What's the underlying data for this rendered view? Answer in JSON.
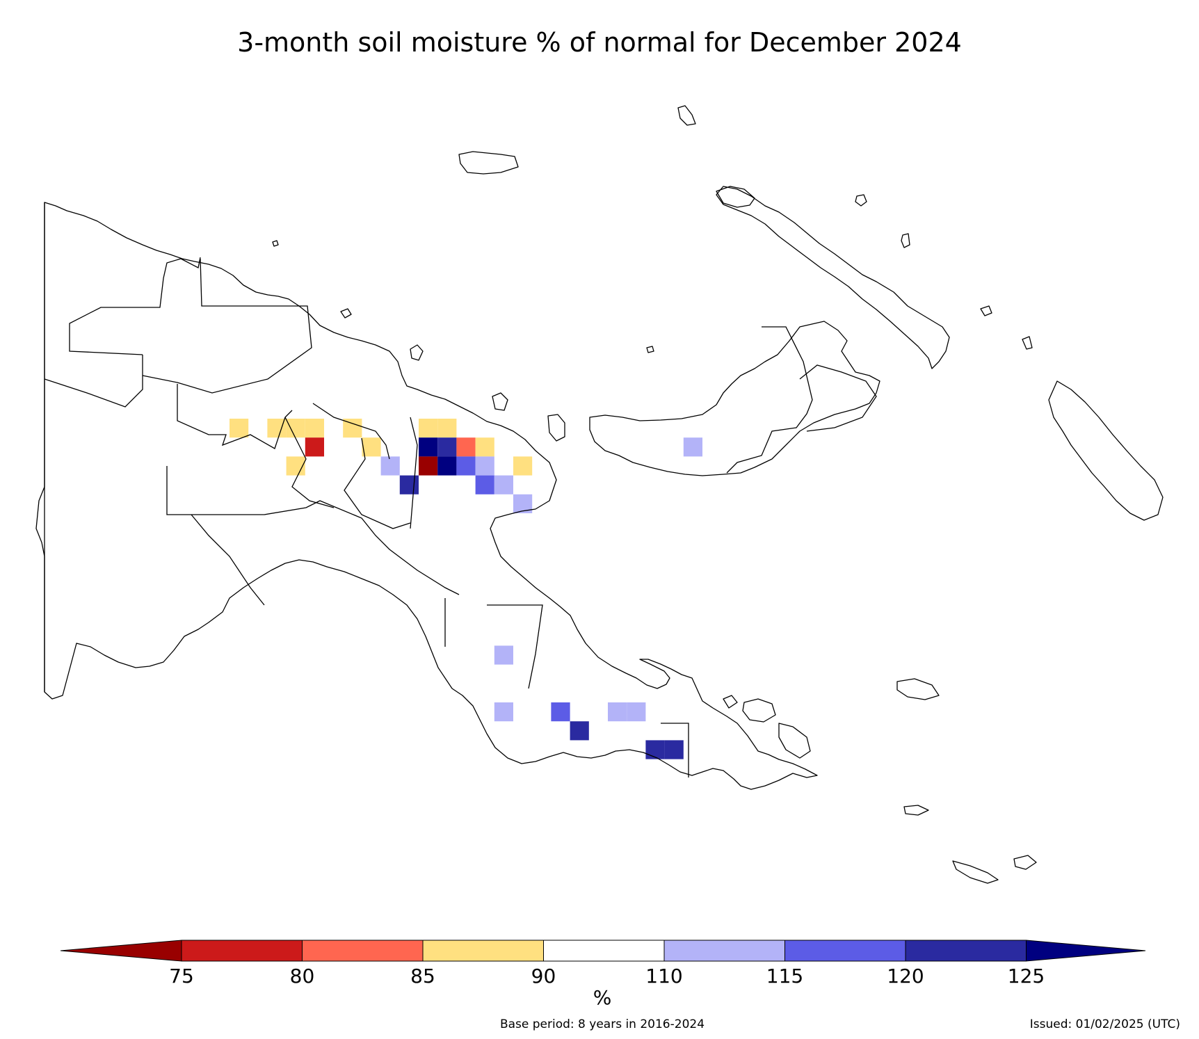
{
  "title": "3-month soil moisture % of normal for December 2024",
  "colorbar": {
    "unit_label": "%",
    "ticks": [
      "75",
      "80",
      "85",
      "90",
      "110",
      "115",
      "120",
      "125"
    ],
    "bins": [
      {
        "range": "< 75",
        "color": "#990000"
      },
      {
        "range": "75–80",
        "color": "#cc1a1a"
      },
      {
        "range": "80–85",
        "color": "#ff6650"
      },
      {
        "range": "85–90",
        "color": "#ffe080"
      },
      {
        "range": "90–110",
        "color": "#ffffff"
      },
      {
        "range": "110–115",
        "color": "#b3b3f8"
      },
      {
        "range": "115–120",
        "color": "#5c5ce6"
      },
      {
        "range": "120–125",
        "color": "#2a2aa0"
      },
      {
        "range": "> 125",
        "color": "#000080"
      }
    ]
  },
  "footer": {
    "base_period": "Base period: 8 years in 2016-2024",
    "issued": "Issued: 01/02/2025 (UTC)"
  },
  "map": {
    "region": "Papua New Guinea",
    "grid_cells": [
      {
        "col": 0,
        "row": 0,
        "bin": 3
      },
      {
        "col": 2,
        "row": 0,
        "bin": 3
      },
      {
        "col": 3,
        "row": 0,
        "bin": 3
      },
      {
        "col": 4,
        "row": 0,
        "bin": 3
      },
      {
        "col": 6,
        "row": 0,
        "bin": 3
      },
      {
        "col": 10,
        "row": 0,
        "bin": 3
      },
      {
        "col": 11,
        "row": 0,
        "bin": 3
      },
      {
        "col": 4,
        "row": 1,
        "bin": 1
      },
      {
        "col": 7,
        "row": 1,
        "bin": 3
      },
      {
        "col": 10,
        "row": 1,
        "bin": 8
      },
      {
        "col": 11,
        "row": 1,
        "bin": 7
      },
      {
        "col": 12,
        "row": 1,
        "bin": 2
      },
      {
        "col": 13,
        "row": 1,
        "bin": 3
      },
      {
        "col": 3,
        "row": 2,
        "bin": 3
      },
      {
        "col": 8,
        "row": 2,
        "bin": 5
      },
      {
        "col": 10,
        "row": 2,
        "bin": 0
      },
      {
        "col": 11,
        "row": 2,
        "bin": 8
      },
      {
        "col": 12,
        "row": 2,
        "bin": 6
      },
      {
        "col": 13,
        "row": 2,
        "bin": 5
      },
      {
        "col": 15,
        "row": 2,
        "bin": 3
      },
      {
        "col": 9,
        "row": 3,
        "bin": 7
      },
      {
        "col": 13,
        "row": 3,
        "bin": 6
      },
      {
        "col": 14,
        "row": 3,
        "bin": 5
      },
      {
        "col": 15,
        "row": 4,
        "bin": 5
      },
      {
        "col": 24,
        "row": 1,
        "bin": 5
      },
      {
        "col": 14,
        "row": 12,
        "bin": 5
      },
      {
        "col": 14,
        "row": 15,
        "bin": 5
      },
      {
        "col": 17,
        "row": 15,
        "bin": 6
      },
      {
        "col": 20,
        "row": 15,
        "bin": 5
      },
      {
        "col": 21,
        "row": 15,
        "bin": 5
      },
      {
        "col": 18,
        "row": 16,
        "bin": 7
      },
      {
        "col": 22,
        "row": 17,
        "bin": 7
      },
      {
        "col": 23,
        "row": 17,
        "bin": 7
      }
    ]
  }
}
